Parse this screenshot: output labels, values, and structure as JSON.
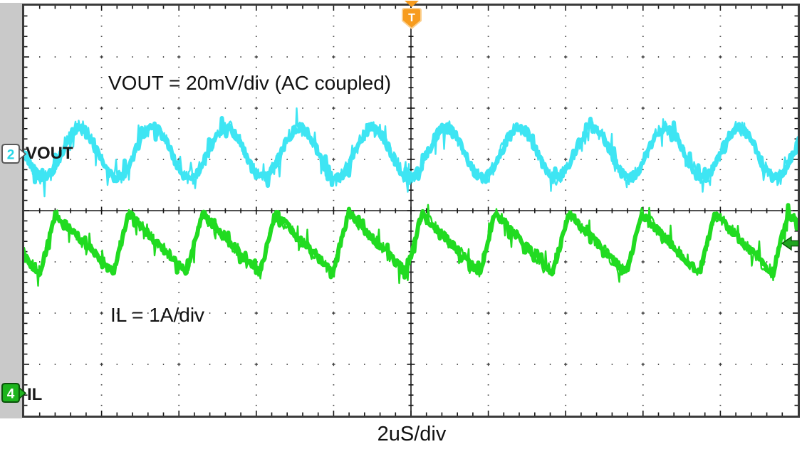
{
  "scope": {
    "trace_labels": {
      "vout": "VOUT",
      "il": "IL"
    },
    "annotations": {
      "vout": "VOUT = 20mV/div (AC coupled)",
      "il": "IL = 1A/div"
    },
    "timebase_label": "2uS/div",
    "channels": [
      {
        "number": "2",
        "name": "VOUT",
        "badge_style": "outlined",
        "color": "#29d8e8"
      },
      {
        "number": "4",
        "name": "IL",
        "badge_style": "filled",
        "color": "#1db41d"
      }
    ],
    "trigger": {
      "label": "T",
      "color": "#f79c1e"
    },
    "colors": {
      "sidebar": "#c9c9c9",
      "graticule_border": "#3a3a3a",
      "grid_dots": "#3b3b3b",
      "background": "#ffffff",
      "level_marker_green": "#1fa51f"
    }
  },
  "chart_data": {
    "type": "line",
    "title": "",
    "xlabel": "2uS/div",
    "ylabel": "",
    "x_divisions": 10,
    "y_divisions": 8,
    "minor_per_division": 5,
    "grid": "dotted major gridlines with center crosshair and border ticks",
    "legend_position": "none",
    "series": [
      {
        "name": "VOUT",
        "channel": 2,
        "color": "#3ee5f3",
        "vertical_scale": "20mV/div",
        "coupling": "AC coupled",
        "shape": "sine_with_noise",
        "period_div": 0.947,
        "amplitude_div": 0.49,
        "center_y_div": 2.87,
        "peak_x_div": 0.718,
        "noise_div": 0.085
      },
      {
        "name": "IL",
        "channel": 4,
        "color": "#21db21",
        "vertical_scale": "1A/div",
        "shape": "sawtooth_with_noise",
        "period_div": 0.947,
        "amplitude_div": 0.583,
        "center_y_div": 4.64,
        "peak_x_div": 0.405,
        "rise_fraction": 0.21,
        "noise_div": 0.05
      }
    ],
    "trigger": {
      "label": "T",
      "x_div": 5
    },
    "level_marker": {
      "channel": 4,
      "y_div": 4.64,
      "side": "right"
    }
  }
}
